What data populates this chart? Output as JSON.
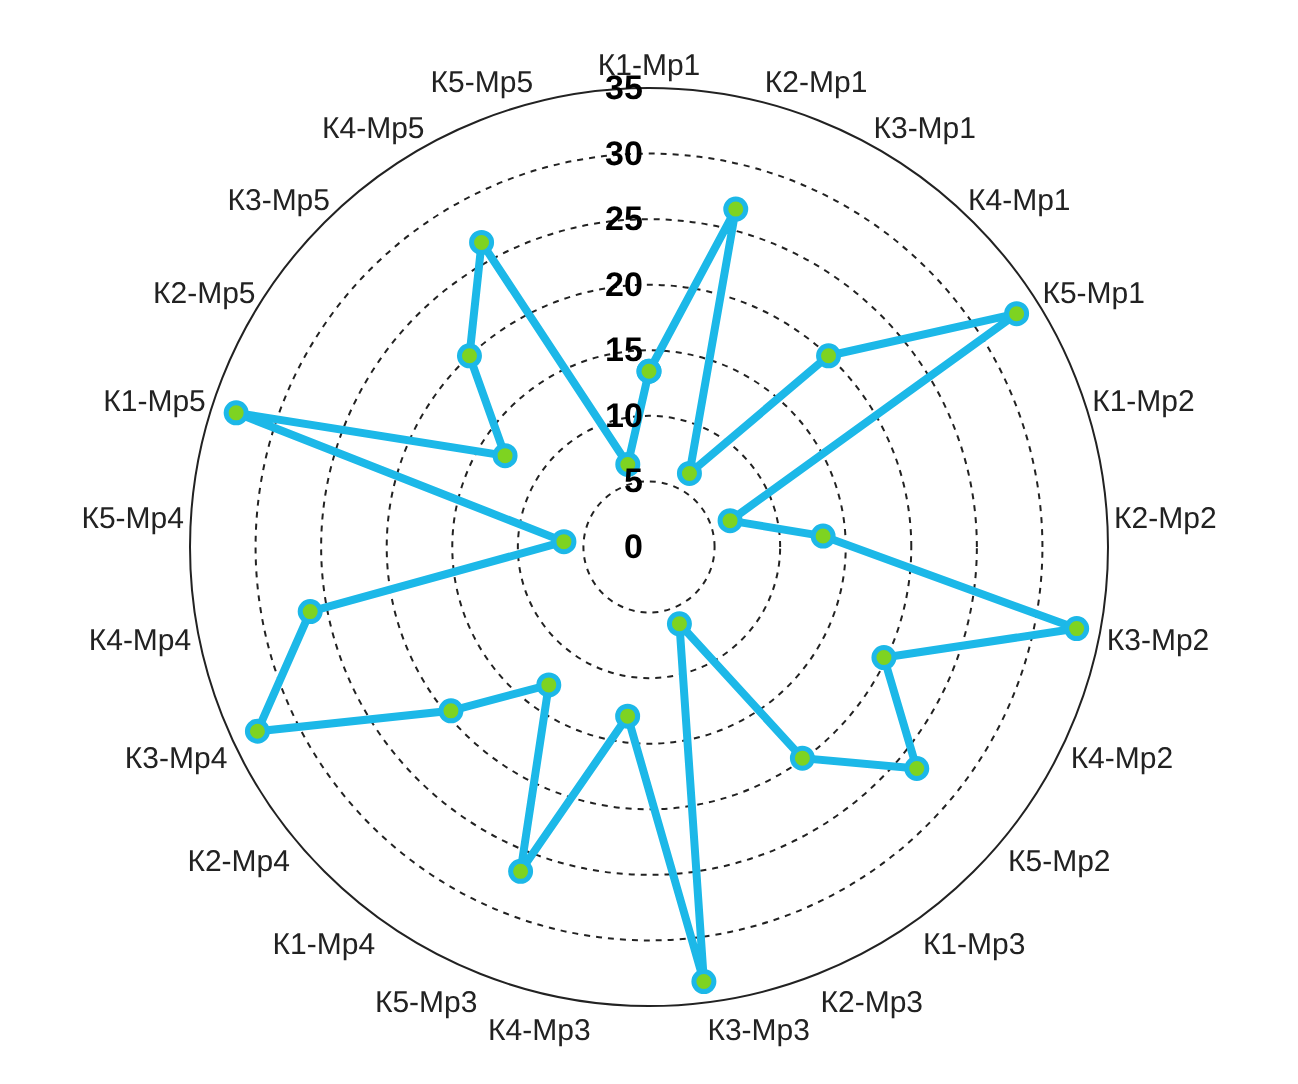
{
  "chart_data": {
    "type": "radar",
    "categories": [
      "К1-Мр1",
      "К2-Мр1",
      "К3-Мр1",
      "К4-Мр1",
      "К5-Мр1",
      "К1-Мр2",
      "К2-Мр2",
      "К3-Мр2",
      "К4-Мр2",
      "К5-Мр2",
      "К1-Мр3",
      "К2-Мр3",
      "К3-Мр3",
      "К4-Мр3",
      "К5-Мр3",
      "К1-Мр4",
      "К2-Мр4",
      "К3-Мр4",
      "К4-Мр4",
      "К5-Мр4",
      "К1-Мр5",
      "К2-Мр5",
      "К3-Мр5",
      "К4-Мр5",
      "К5-Мр5"
    ],
    "series": [
      {
        "color": "#1cb8e8",
        "values": [
          13.4,
          26.6,
          6.4,
          20,
          33.2,
          6.5,
          13.3,
          33.2,
          19.8,
          26.5,
          19.9,
          6.3,
          33.4,
          13,
          26.6,
          13,
          19.6,
          33,
          26.3,
          6.5,
          33.1,
          13,
          20,
          26.5,
          6.5
        ]
      }
    ],
    "ylim": [
      0,
      35
    ],
    "yticks": [
      0,
      5,
      10,
      15,
      20,
      25,
      30,
      35
    ],
    "grid": true,
    "marker": "circle",
    "line_style": "solid"
  }
}
